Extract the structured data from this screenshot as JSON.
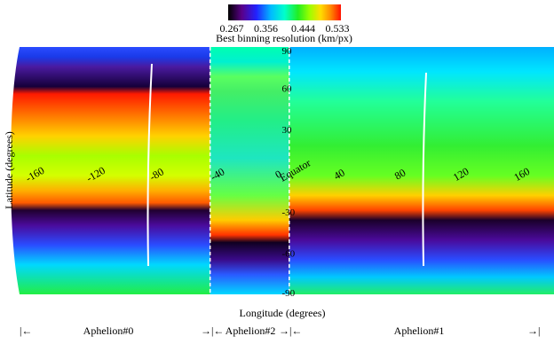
{
  "chart_data": {
    "type": "heatmap",
    "title": "",
    "xlabel": "Longitude (degrees)",
    "ylabel": "Latitude (degrees)",
    "colorbar": {
      "label": "Best binning resolution (km/px)",
      "ticks": [
        "0.267",
        "0.356",
        "0.444",
        "0.533"
      ],
      "range": [
        0.267,
        0.533
      ],
      "colors": [
        "#000000",
        "#5a0088",
        "#2222ff",
        "#00bbff",
        "#00ffcc",
        "#22ee22",
        "#99ff00",
        "#ffdd00",
        "#ff8800",
        "#ff1100"
      ]
    },
    "xlim": [
      -180,
      180
    ],
    "ylim": [
      -90,
      90
    ],
    "longitude_ticks": [
      "-160",
      "-120",
      "-80",
      "-40",
      "0",
      "40",
      "80",
      "120",
      "160"
    ],
    "latitude_ticks": [
      "-90",
      "-60",
      "-30",
      "30",
      "60",
      "90"
    ],
    "equator_label": "Equator",
    "segments": [
      {
        "name": "Aphelion#0",
        "lon_range": [
          -180,
          -46
        ]
      },
      {
        "name": "Aphelion#2",
        "lon_range": [
          -46,
          6
        ]
      },
      {
        "name": "Aphelion#1",
        "lon_range": [
          6,
          180
        ]
      }
    ],
    "arrow_left": "|←",
    "arrow_right": "→|",
    "arrow_mid": "→|←"
  }
}
